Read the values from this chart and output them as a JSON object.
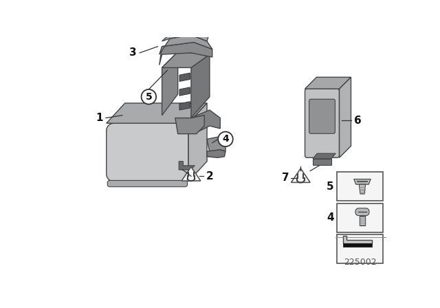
{
  "bg_color": "#ffffff",
  "lc": "#c2c5c8",
  "mc": "#9a9e9f",
  "dc": "#757779",
  "ec": "#444444",
  "diagram_number": "225002"
}
